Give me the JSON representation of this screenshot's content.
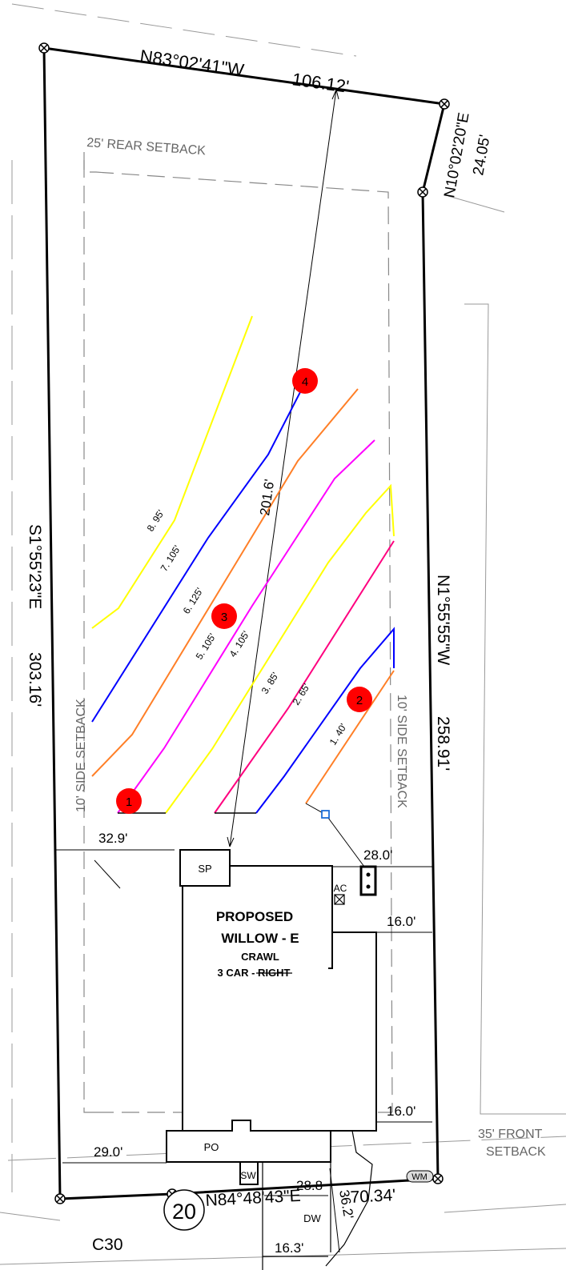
{
  "boundary": {
    "north": "N83°02'41\"W",
    "north_dist": "106.12'",
    "northeast": "N10°02'20\"E",
    "northeast_dist": "24.05'",
    "west": "S1°55'23\"E",
    "west_dist": "303.16'",
    "east": "N1°55'55\"W",
    "east_dist": "258.91'",
    "south": "N84°48'43\"E",
    "south_dist": "70.34'",
    "curve": "C30"
  },
  "setbacks": {
    "rear": "25' REAR SETBACK",
    "side_left": "10' SIDE SETBACK",
    "side_right": "10' SIDE SETBACK",
    "front_line1": "35' FRONT",
    "front_line2": "SETBACK"
  },
  "house": {
    "line1": "PROPOSED",
    "line2": "WILLOW - E",
    "line3": "CRAWL",
    "line4": "3 CAR - RIGHT",
    "sp": "SP",
    "po": "PO",
    "sw": "SW",
    "ac": "AC",
    "dw": "DW",
    "wm": "WM"
  },
  "dimensions": {
    "left_top": "32.9'",
    "left_bottom": "29.0'",
    "right_top": "28.0'",
    "right_mid": "16.0'",
    "right_lower": "16.0'",
    "drive_width": "28.8",
    "drive_length": "36.2'",
    "bottom": "16.3'",
    "diagonal": "201.6'"
  },
  "contours": {
    "c8": "8. 95'",
    "c7": "7. 105'",
    "c6": "6. 125'",
    "c5": "5. 105'",
    "c4": "4. 105'",
    "c3": "3. 85'",
    "c2": "2. 65'",
    "c1": "1. 40'"
  },
  "markers": [
    "1",
    "2",
    "3",
    "4"
  ],
  "lot_number": "20",
  "colors": {
    "yellow": "#ffff00",
    "blue": "#0000ff",
    "orange": "#ff7f27",
    "magenta": "#ff00ff",
    "crimson": "#ff007f",
    "marker": "#ff0000",
    "pin_blue": "#1e6fd9"
  }
}
